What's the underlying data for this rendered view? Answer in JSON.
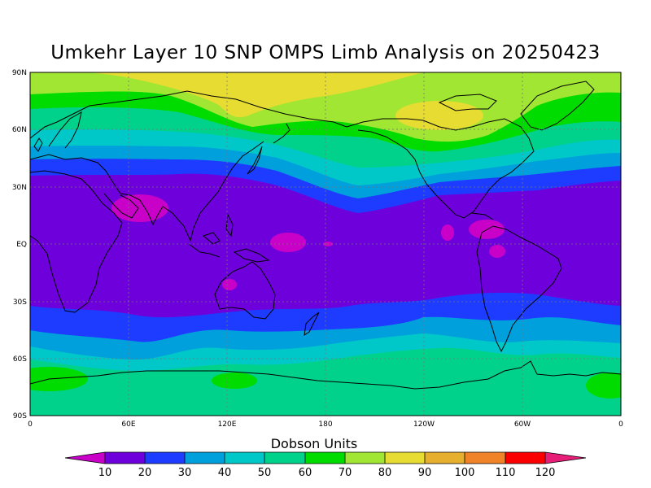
{
  "title": "Umkehr Layer 10 SNP OMPS Limb Analysis on 20250423",
  "colorbar_title": "Dobson Units",
  "lat_ticks": [
    "90N",
    "60N",
    "30N",
    "EQ",
    "30S",
    "60S",
    "90S"
  ],
  "lon_ticks": [
    "0",
    "60E",
    "120E",
    "180",
    "120W",
    "60W",
    "0"
  ],
  "colorbar_labels": [
    "10",
    "20",
    "30",
    "40",
    "50",
    "60",
    "70",
    "80",
    "90",
    "100",
    "110",
    "120"
  ],
  "colors": {
    "lt10": "#c800c8",
    "c10_20": "#6e00dc",
    "c20_30": "#1e3cff",
    "c30_40": "#00a0dc",
    "c40_50": "#00c8c8",
    "c50_60": "#00d28c",
    "c60_70": "#00dc00",
    "c70_80": "#a0e632",
    "c80_90": "#e6dc32",
    "c90_100": "#e6af2d",
    "c100_110": "#f08228",
    "c110_120": "#fa0000",
    "gt120": "#e61e78"
  },
  "chart_data": {
    "type": "map",
    "variable": "Umkehr Layer 10 ozone",
    "units": "Dobson Units",
    "date": "20250423",
    "projection": "equirectangular",
    "lat_range": [
      -90,
      90
    ],
    "lon_range": [
      0,
      360
    ],
    "levels": [
      10,
      20,
      30,
      40,
      50,
      60,
      70,
      80,
      90,
      100,
      110,
      120
    ],
    "gridlines": "dotted",
    "coastlines": true,
    "zonal_pattern": [
      {
        "band": "75N-90N",
        "range": "70-80 with 80-90 patches"
      },
      {
        "band": "60N-75N",
        "range": "60-70"
      },
      {
        "band": "45N-60N",
        "range": "40-60"
      },
      {
        "band": "35N-45N",
        "range": "20-30"
      },
      {
        "band": "40S-35N",
        "range": "10-20"
      },
      {
        "band": "55S-40S",
        "range": "20-40"
      },
      {
        "band": "90S-55S",
        "range": "50-60 with 60-70 patches"
      }
    ],
    "low_spots_lt10": [
      "Northern India",
      "Western Pacific equator",
      "Northern Australia",
      "Central America",
      "Northern South America"
    ]
  }
}
